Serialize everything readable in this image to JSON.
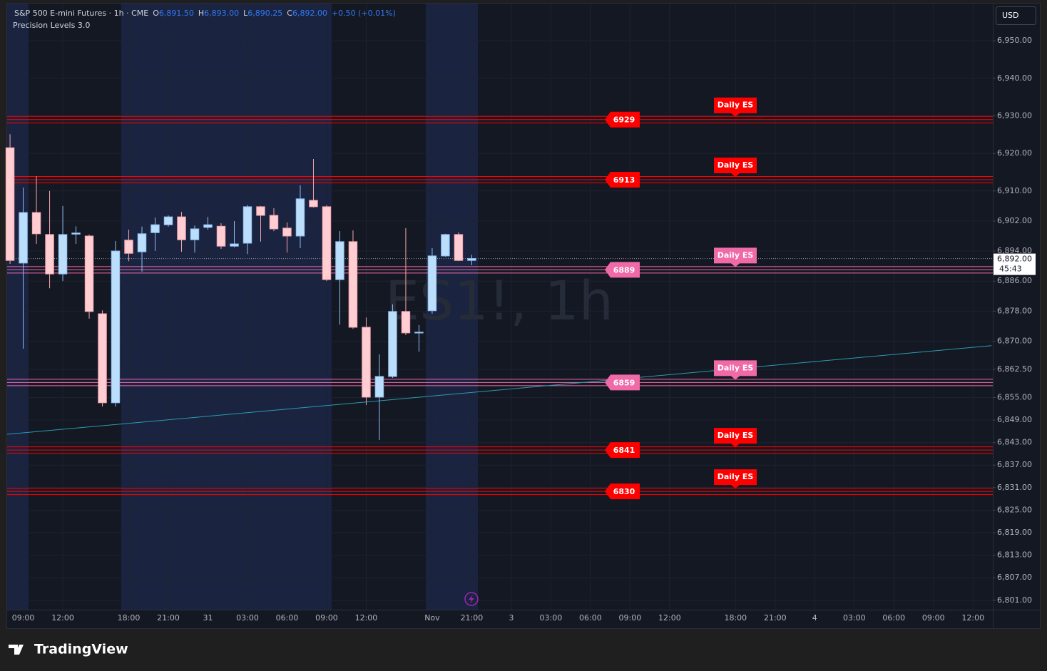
{
  "chart_data": {
    "type": "candlestick",
    "title": "S&P 500 E-mini Futures · 1h · CME",
    "header": {
      "o_label": "O",
      "o": "6,891.50",
      "h_label": "H",
      "h": "6,893.00",
      "l_label": "L",
      "l": "6,890.25",
      "c_label": "C",
      "c": "6,892.00",
      "change": "+0.50 (+0.01%)"
    },
    "indicator": "Precision Levels 3.0",
    "watermark": "ES1!, 1h",
    "currency": "USD",
    "brand": "TradingView",
    "open": [
      6921.5,
      6890.8,
      6904.25,
      6898.4,
      6887.9,
      6898.5,
      6898.0,
      6877.3,
      6853.6,
      6896.9,
      6893.8,
      6898.9,
      6901.0,
      6903.1,
      6897.0,
      6900.3,
      6900.6,
      6895.3,
      6896.1,
      6905.8,
      6903.5,
      6900.1,
      6898.0,
      6907.5,
      6905.8,
      6886.4,
      6896.5,
      6873.7,
      6855.1,
      6860.6,
      6877.9,
      6872.3,
      6878.1,
      6892.7,
      6898.4,
      6891.5
    ],
    "high": [
      6925.1,
      6910.9,
      6913.9,
      6910.0,
      6906.0,
      6900.6,
      6898.4,
      6878.2,
      6896.7,
      6899.7,
      6900.5,
      6902.9,
      6903.5,
      6904.4,
      6900.8,
      6903.1,
      6901.4,
      6902.0,
      6906.3,
      6906.0,
      6905.4,
      6901.6,
      6911.5,
      6918.5,
      6906.2,
      6899.3,
      6899.5,
      6876.3,
      6866.5,
      6879.8,
      6900.1,
      6874.3,
      6894.8,
      6898.6,
      6899.0,
      6893.0
    ],
    "low": [
      6890.6,
      6868.0,
      6895.9,
      6884.1,
      6886.0,
      6895.9,
      6876.0,
      6852.6,
      6852.6,
      6891.3,
      6888.5,
      6894.0,
      6900.5,
      6893.8,
      6893.6,
      6899.7,
      6894.6,
      6895.0,
      6893.2,
      6896.5,
      6899.3,
      6893.6,
      6894.8,
      6905.6,
      6886.0,
      6874.4,
      6873.3,
      6853.0,
      6843.7,
      6860.2,
      6871.6,
      6867.2,
      6877.3,
      6892.5,
      6891.3,
      6890.25
    ],
    "close": [
      6891.5,
      6904.25,
      6898.6,
      6887.9,
      6898.4,
      6898.8,
      6877.9,
      6853.6,
      6894.0,
      6893.4,
      6898.6,
      6901.0,
      6903.1,
      6897.0,
      6899.9,
      6901.0,
      6895.3,
      6895.9,
      6905.8,
      6903.5,
      6899.9,
      6898.0,
      6907.9,
      6905.8,
      6886.4,
      6896.5,
      6873.7,
      6855.1,
      6860.6,
      6877.9,
      6872.2,
      6872.4,
      6892.7,
      6898.4,
      6891.5,
      6892.0
    ],
    "up_color": "#bbdefb",
    "up_border": "#90bff5",
    "down_color": "#ffcdd2",
    "down_border": "#f7a5ad",
    "xlim": [
      -0.22,
      74.5
    ],
    "xticks": [
      {
        "value": 1,
        "label": "09:00"
      },
      {
        "value": 4,
        "label": "12:00"
      },
      {
        "value": 9,
        "label": "18:00"
      },
      {
        "value": 12,
        "label": "21:00"
      },
      {
        "value": 15,
        "label": "31"
      },
      {
        "value": 18,
        "label": "03:00"
      },
      {
        "value": 21,
        "label": "06:00"
      },
      {
        "value": 24,
        "label": "09:00"
      },
      {
        "value": 27,
        "label": "12:00"
      },
      {
        "value": 32,
        "label": "Nov"
      },
      {
        "value": 35,
        "label": "21:00"
      },
      {
        "value": 38,
        "label": "3"
      },
      {
        "value": 41,
        "label": "03:00"
      },
      {
        "value": 44,
        "label": "06:00"
      },
      {
        "value": 47,
        "label": "09:00"
      },
      {
        "value": 50,
        "label": "12:00"
      },
      {
        "value": 55,
        "label": "18:00"
      },
      {
        "value": 58,
        "label": "21:00"
      },
      {
        "value": 61,
        "label": "4"
      },
      {
        "value": 64,
        "label": "03:00"
      },
      {
        "value": 67,
        "label": "06:00"
      },
      {
        "value": 70,
        "label": "09:00"
      },
      {
        "value": 73,
        "label": "12:00"
      }
    ],
    "ylim": [
      6798.5,
      6959.9
    ],
    "yticks": [
      {
        "value": 6950,
        "label": "6,950.00"
      },
      {
        "value": 6940,
        "label": "6,940.00"
      },
      {
        "value": 6930,
        "label": "6,930.00"
      },
      {
        "value": 6920,
        "label": "6,920.00"
      },
      {
        "value": 6910,
        "label": "6,910.00"
      },
      {
        "value": 6902,
        "label": "6,902.00"
      },
      {
        "value": 6894,
        "label": "6,894.00"
      },
      {
        "value": 6886,
        "label": "6,886.00"
      },
      {
        "value": 6878,
        "label": "6,878.00"
      },
      {
        "value": 6870,
        "label": "6,870.00"
      },
      {
        "value": 6862.5,
        "label": "6,862.50"
      },
      {
        "value": 6855,
        "label": "6,855.00"
      },
      {
        "value": 6849,
        "label": "6,849.00"
      },
      {
        "value": 6843,
        "label": "6,843.00"
      },
      {
        "value": 6837,
        "label": "6,837.00"
      },
      {
        "value": 6831,
        "label": "6,831.00"
      },
      {
        "value": 6825,
        "label": "6,825.00"
      },
      {
        "value": 6819,
        "label": "6,819.00"
      },
      {
        "value": 6813,
        "label": "6,813.00"
      },
      {
        "value": 6807,
        "label": "6,807.00"
      },
      {
        "value": 6801,
        "label": "6,801.00"
      }
    ],
    "grid": true,
    "levels": [
      {
        "value": 6929,
        "tag": "Daily ES",
        "color": "#ff0000"
      },
      {
        "value": 6913,
        "tag": "Daily ES",
        "color": "#ff0000"
      },
      {
        "value": 6889,
        "tag": "Daily ES",
        "color": "#f06aa8"
      },
      {
        "value": 6859,
        "tag": "Daily ES",
        "color": "#f06aa8"
      },
      {
        "value": 6841,
        "tag": "Daily ES",
        "color": "#ff0000"
      },
      {
        "value": 6830,
        "tag": "Daily ES",
        "color": "#ff0000"
      }
    ],
    "trendline": {
      "x": [
        -0.22,
        74.4
      ],
      "y": [
        6845.2,
        6868.8
      ],
      "color": "#2a9bb0"
    },
    "last_price": {
      "value": 6892,
      "label": "6,892.00",
      "countdown": "45:43"
    }
  }
}
